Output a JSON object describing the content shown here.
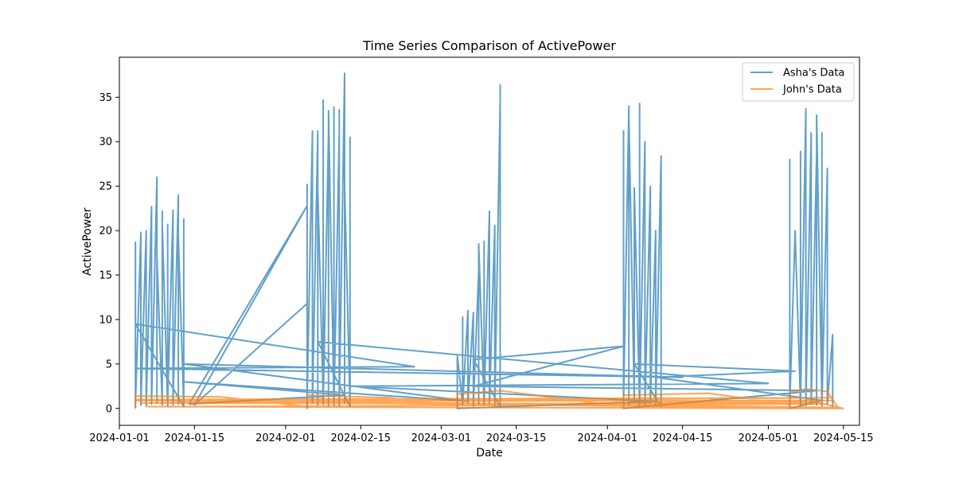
{
  "chart_data": {
    "type": "line",
    "title": "Time Series Comparison of ActivePower",
    "xlabel": "Date",
    "ylabel": "ActivePower",
    "xlim": [
      "2024-01-01",
      "2024-05-18"
    ],
    "ylim": [
      -1.9,
      39.5
    ],
    "x_ticks": [
      "2024-01-01",
      "2024-01-15",
      "2024-02-01",
      "2024-02-15",
      "2024-03-01",
      "2024-03-15",
      "2024-04-01",
      "2024-04-15",
      "2024-05-01",
      "2024-05-15"
    ],
    "y_ticks": [
      0,
      5,
      10,
      15,
      20,
      25,
      30,
      35
    ],
    "legend": "top-right",
    "grid": false,
    "series": [
      {
        "name": "Asha's Data",
        "color": "#1f77b4",
        "points": [
          [
            "2024-01-04",
            0
          ],
          [
            "2024-01-04",
            18.7
          ],
          [
            "2024-01-04",
            0.5
          ],
          [
            "2024-01-05",
            19.8
          ],
          [
            "2024-01-05",
            1.0
          ],
          [
            "2024-01-05",
            16.8
          ],
          [
            "2024-01-05",
            0.4
          ],
          [
            "2024-01-06",
            20.0
          ],
          [
            "2024-01-06",
            0.8
          ],
          [
            "2024-01-06",
            17.5
          ],
          [
            "2024-01-06",
            0.3
          ],
          [
            "2024-01-07",
            22.7
          ],
          [
            "2024-01-07",
            1.2
          ],
          [
            "2024-01-07",
            19.4
          ],
          [
            "2024-01-07",
            0.5
          ],
          [
            "2024-01-08",
            26.0
          ],
          [
            "2024-01-08",
            0.6
          ],
          [
            "2024-01-08",
            17.0
          ],
          [
            "2024-01-09",
            0.4
          ],
          [
            "2024-01-09",
            22.2
          ],
          [
            "2024-01-09",
            1.0
          ],
          [
            "2024-01-09",
            20.6
          ],
          [
            "2024-01-10",
            0.3
          ],
          [
            "2024-01-10",
            20.7
          ],
          [
            "2024-01-10",
            0.8
          ],
          [
            "2024-01-11",
            22.3
          ],
          [
            "2024-01-11",
            0.4
          ],
          [
            "2024-01-11",
            17.8
          ],
          [
            "2024-01-11",
            0.6
          ],
          [
            "2024-01-12",
            24.0
          ],
          [
            "2024-01-12",
            0.5
          ],
          [
            "2024-01-12",
            19.2
          ],
          [
            "2024-01-13",
            0.3
          ],
          [
            "2024-01-13",
            21.3
          ],
          [
            "2024-01-13",
            0.7
          ],
          [
            "2024-01-13",
            20.8
          ],
          [
            "2024-01-13",
            0.2
          ],
          [
            "2024-01-04",
            9.5
          ],
          [
            "2024-02-25",
            4.7
          ],
          [
            "2024-01-04",
            4.5
          ],
          [
            "2024-04-15",
            3.5
          ],
          [
            "2024-01-13",
            5.0
          ],
          [
            "2024-03-06",
            0.8
          ],
          [
            "2024-01-13",
            3.0
          ],
          [
            "2024-02-12",
            1.5
          ],
          [
            "2024-01-14",
            0.5
          ],
          [
            "2024-02-05",
            22.8
          ],
          [
            "2024-01-15",
            0.4
          ],
          [
            "2024-02-05",
            11.8
          ],
          [
            "2024-02-05",
            0
          ],
          [
            "2024-02-05",
            25.2
          ],
          [
            "2024-02-05",
            1.0
          ],
          [
            "2024-02-06",
            31.2
          ],
          [
            "2024-02-06",
            0.6
          ],
          [
            "2024-02-07",
            31.2
          ],
          [
            "2024-02-07",
            0.4
          ],
          [
            "2024-02-07",
            24.8
          ],
          [
            "2024-02-08",
            1.0
          ],
          [
            "2024-02-08",
            34.7
          ],
          [
            "2024-02-08",
            0.5
          ],
          [
            "2024-02-09",
            31.0
          ],
          [
            "2024-02-09",
            0.3
          ],
          [
            "2024-02-09",
            33.5
          ],
          [
            "2024-02-10",
            0.7
          ],
          [
            "2024-02-10",
            33.9
          ],
          [
            "2024-02-10",
            0.4
          ],
          [
            "2024-02-11",
            31.0
          ],
          [
            "2024-02-11",
            0.5
          ],
          [
            "2024-02-11",
            33.6
          ],
          [
            "2024-02-11",
            0.3
          ],
          [
            "2024-02-12",
            37.7
          ],
          [
            "2024-02-12",
            0.6
          ],
          [
            "2024-02-12",
            25.0
          ],
          [
            "2024-02-13",
            0.3
          ],
          [
            "2024-02-13",
            30.5
          ],
          [
            "2024-02-13",
            0.5
          ],
          [
            "2024-02-13",
            22.5
          ],
          [
            "2024-02-13",
            0.2
          ],
          [
            "2024-02-07",
            7.5
          ],
          [
            "2024-05-01",
            2.8
          ],
          [
            "2024-02-13",
            2.5
          ],
          [
            "2024-04-10",
            0.8
          ],
          [
            "2024-03-04",
            0
          ],
          [
            "2024-03-04",
            6.0
          ],
          [
            "2024-03-05",
            0.5
          ],
          [
            "2024-03-05",
            10.3
          ],
          [
            "2024-03-05",
            0.4
          ],
          [
            "2024-03-06",
            11.0
          ],
          [
            "2024-03-06",
            0.6
          ],
          [
            "2024-03-07",
            10.8
          ],
          [
            "2024-03-07",
            0.3
          ],
          [
            "2024-03-08",
            15.5
          ],
          [
            "2024-03-08",
            0.5
          ],
          [
            "2024-03-08",
            18.5
          ],
          [
            "2024-03-09",
            0.4
          ],
          [
            "2024-03-09",
            18.8
          ],
          [
            "2024-03-09",
            0.7
          ],
          [
            "2024-03-10",
            22.2
          ],
          [
            "2024-03-10",
            0.5
          ],
          [
            "2024-03-11",
            20.6
          ],
          [
            "2024-03-11",
            0.3
          ],
          [
            "2024-03-12",
            34.5
          ],
          [
            "2024-03-12",
            36.4
          ],
          [
            "2024-03-12",
            0.2
          ],
          [
            "2024-03-07",
            5.5
          ],
          [
            "2024-04-04",
            7.0
          ],
          [
            "2024-03-07",
            2.5
          ],
          [
            "2024-05-10",
            2.0
          ],
          [
            "2024-04-04",
            0
          ],
          [
            "2024-04-04",
            31.2
          ],
          [
            "2024-04-04",
            0.6
          ],
          [
            "2024-04-05",
            34.0
          ],
          [
            "2024-04-05",
            0.4
          ],
          [
            "2024-04-05",
            33.0
          ],
          [
            "2024-04-06",
            0.8
          ],
          [
            "2024-04-06",
            24.8
          ],
          [
            "2024-04-07",
            0.3
          ],
          [
            "2024-04-07",
            34.3
          ],
          [
            "2024-04-07",
            0.5
          ],
          [
            "2024-04-08",
            30.0
          ],
          [
            "2024-04-08",
            0.4
          ],
          [
            "2024-04-09",
            25.0
          ],
          [
            "2024-04-09",
            0.6
          ],
          [
            "2024-04-10",
            20.0
          ],
          [
            "2024-04-10",
            0.3
          ],
          [
            "2024-04-11",
            28.4
          ],
          [
            "2024-04-11",
            0.2
          ],
          [
            "2024-04-06",
            5.0
          ],
          [
            "2024-05-06",
            4.2
          ],
          [
            "2024-04-10",
            3.5
          ],
          [
            "2024-05-11",
            0.9
          ],
          [
            "2024-05-05",
            0
          ],
          [
            "2024-05-05",
            28.0
          ],
          [
            "2024-05-05",
            0.5
          ],
          [
            "2024-05-06",
            20.0
          ],
          [
            "2024-05-07",
            0.4
          ],
          [
            "2024-05-07",
            28.9
          ],
          [
            "2024-05-07",
            0.6
          ],
          [
            "2024-05-08",
            33.7
          ],
          [
            "2024-05-08",
            0.3
          ],
          [
            "2024-05-09",
            31.0
          ],
          [
            "2024-05-09",
            0.5
          ],
          [
            "2024-05-10",
            28.5
          ],
          [
            "2024-05-10",
            0.4
          ],
          [
            "2024-05-10",
            33.0
          ],
          [
            "2024-05-11",
            0.6
          ],
          [
            "2024-05-11",
            31.0
          ],
          [
            "2024-05-11",
            0.3
          ],
          [
            "2024-05-12",
            27.0
          ],
          [
            "2024-05-12",
            0.5
          ],
          [
            "2024-05-13",
            8.3
          ],
          [
            "2024-05-13",
            0.2
          ]
        ]
      },
      {
        "name": "John's Data",
        "color": "#ff7f0e",
        "points": [
          [
            "2024-01-04",
            0
          ],
          [
            "2024-01-04",
            1.4
          ],
          [
            "2024-01-20",
            1.3
          ],
          [
            "2024-02-05",
            0.2
          ],
          [
            "2024-02-05",
            1.5
          ],
          [
            "2024-02-20",
            1.2
          ],
          [
            "2024-03-04",
            0.3
          ],
          [
            "2024-03-04",
            1.6
          ],
          [
            "2024-03-12",
            2.0
          ],
          [
            "2024-04-04",
            0.2
          ],
          [
            "2024-04-04",
            1.5
          ],
          [
            "2024-04-20",
            1.7
          ],
          [
            "2024-05-05",
            0.4
          ],
          [
            "2024-05-05",
            1.8
          ],
          [
            "2024-05-08",
            2.2
          ],
          [
            "2024-05-12",
            1.9
          ],
          [
            "2024-05-14",
            0.1
          ],
          [
            "2024-01-04",
            1.0
          ],
          [
            "2024-05-13",
            1.2
          ],
          [
            "2024-01-05",
            0.6
          ],
          [
            "2024-05-12",
            0.5
          ],
          [
            "2024-01-06",
            0.2
          ],
          [
            "2024-05-14",
            0.0
          ],
          [
            "2024-01-04",
            0.9
          ],
          [
            "2024-04-10",
            1.1
          ],
          [
            "2024-02-07",
            0.8
          ],
          [
            "2024-05-13",
            0.9
          ],
          [
            "2024-03-05",
            0.4
          ],
          [
            "2024-05-10",
            0.7
          ],
          [
            "2024-05-15",
            0
          ],
          [
            "2024-05-14",
            0
          ]
        ]
      }
    ]
  }
}
